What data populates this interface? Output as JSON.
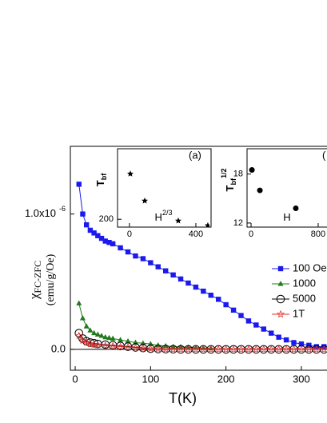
{
  "chart_data": [
    {
      "type": "line",
      "x_label": "T(K)",
      "y_label": "χ",
      "y_label_sub": "FC-ZFC",
      "y_label_units": "(emu/g/Oe)",
      "xlim": [
        -6.4,
        334
      ],
      "xticks": [
        0,
        100,
        200,
        300
      ],
      "ylim": [
        -1.54e-07,
        1.5e-06
      ],
      "yticks": [
        {
          "value": 0,
          "label": "0.0"
        },
        {
          "value": 1e-06,
          "label": "1.0x10",
          "exponent": "-6"
        }
      ],
      "zero_line": true,
      "series": [
        {
          "name": "100 Oe",
          "color": "#1a1aee",
          "marker": "square",
          "x": [
            5,
            10,
            15,
            20,
            25,
            30,
            35,
            40,
            45,
            50,
            60,
            70,
            80,
            90,
            100,
            110,
            120,
            130,
            140,
            150,
            160,
            170,
            180,
            190,
            200,
            210,
            220,
            230,
            240,
            250,
            260,
            270,
            280,
            290,
            300,
            310,
            320,
            330
          ],
          "values": [
            1.22e-06,
            1e-06,
            9.2e-07,
            8.8e-07,
            8.6e-07,
            8.4e-07,
            8.2e-07,
            8e-07,
            7.9e-07,
            7.8e-07,
            7.5e-07,
            7.2e-07,
            6.9e-07,
            6.7e-07,
            6.4e-07,
            6.1e-07,
            5.8e-07,
            5.5e-07,
            5.2e-07,
            4.9e-07,
            4.6e-07,
            4.3e-07,
            4e-07,
            3.7e-07,
            3.3e-07,
            2.9e-07,
            2.5e-07,
            2.1e-07,
            1.8e-07,
            1.5e-07,
            1.2e-07,
            9e-08,
            7e-08,
            5e-08,
            4e-08,
            3e-08,
            2e-08,
            2e-08
          ]
        },
        {
          "name": "1000",
          "color": "#217a1c",
          "marker": "triangle",
          "x": [
            5,
            10,
            15,
            20,
            25,
            30,
            35,
            40,
            45,
            50,
            60,
            70,
            80,
            90,
            100,
            110,
            120,
            130,
            140,
            150,
            160,
            170,
            180
          ],
          "values": [
            3.4e-07,
            2.3e-07,
            1.7e-07,
            1.4e-07,
            1.2e-07,
            1.1e-07,
            1e-07,
            9e-08,
            8.5e-08,
            8e-08,
            7e-08,
            6e-08,
            5e-08,
            4.5e-08,
            4e-08,
            3e-08,
            2.5e-08,
            2e-08,
            1.8e-08,
            1.5e-08,
            1.2e-08,
            1e-08,
            8e-09
          ]
        },
        {
          "name": "5000",
          "color": "#000000",
          "marker": "circle-open",
          "x": [
            5,
            10,
            15,
            20,
            25,
            30,
            40,
            50,
            60,
            70,
            80,
            90,
            100,
            110,
            120,
            130,
            140,
            150,
            160,
            170,
            180,
            190,
            200,
            210,
            220,
            230,
            240,
            250,
            260,
            270,
            280,
            290,
            300,
            310,
            320,
            330
          ],
          "values": [
            1.2e-07,
            8e-08,
            6e-08,
            5e-08,
            4.5e-08,
            4e-08,
            3.5e-08,
            3e-08,
            2.5e-08,
            2e-08,
            1.5e-08,
            1e-08,
            5e-09,
            3e-09,
            2e-09,
            1e-09,
            0,
            0,
            0,
            0,
            0,
            0,
            0,
            0,
            0,
            0,
            0,
            0,
            0,
            0,
            0,
            0,
            0,
            0,
            0,
            0
          ]
        },
        {
          "name": "1T",
          "color": "#e03030",
          "marker": "star",
          "x": [
            5,
            10,
            15,
            20,
            25,
            30,
            40,
            50,
            60,
            70,
            80,
            90,
            100,
            110,
            120,
            130,
            140,
            150,
            160,
            170,
            180,
            190,
            200,
            210,
            220,
            230,
            240,
            250,
            260,
            270,
            280,
            290,
            300,
            310,
            320,
            330
          ],
          "values": [
            1e-07,
            6.5e-08,
            5e-08,
            4e-08,
            3.6e-08,
            3.2e-08,
            2.8e-08,
            2.4e-08,
            2e-08,
            1.6e-08,
            1.2e-08,
            8e-09,
            4e-09,
            2e-09,
            1e-09,
            0,
            0,
            0,
            0,
            0,
            0,
            0,
            0,
            0,
            0,
            0,
            0,
            0,
            0,
            0,
            0,
            0,
            0,
            0,
            0,
            0
          ]
        }
      ]
    },
    {
      "type": "scatter",
      "annotation": "(a)",
      "x_label": "H",
      "x_label_sup": "2/3",
      "y_label": "T",
      "y_label_sub": "bf",
      "xlim": [
        -72,
        482
      ],
      "xticks": [
        0,
        400
      ],
      "ylim": [
        180,
        380
      ],
      "yticks": [
        200
      ],
      "series": [
        {
          "color": "#000000",
          "marker": "star-filled",
          "x": [
            5,
            92,
            294,
            472
          ],
          "values": [
            316,
            247,
            196,
            184
          ]
        }
      ]
    },
    {
      "type": "scatter",
      "annotation": "(",
      "x_label": "H",
      "y_label": "T",
      "y_label_sub": "bf",
      "y_label_sup": "1/2",
      "xlim": [
        -48,
        905
      ],
      "xticks": [
        0,
        800
      ],
      "ylim": [
        11.5,
        21.1
      ],
      "yticks": [
        12,
        18
      ],
      "series": [
        {
          "color": "#000000",
          "marker": "circle-filled",
          "x": [
            10,
            105,
            533
          ],
          "values": [
            18.5,
            16.0,
            13.8
          ]
        }
      ]
    }
  ]
}
